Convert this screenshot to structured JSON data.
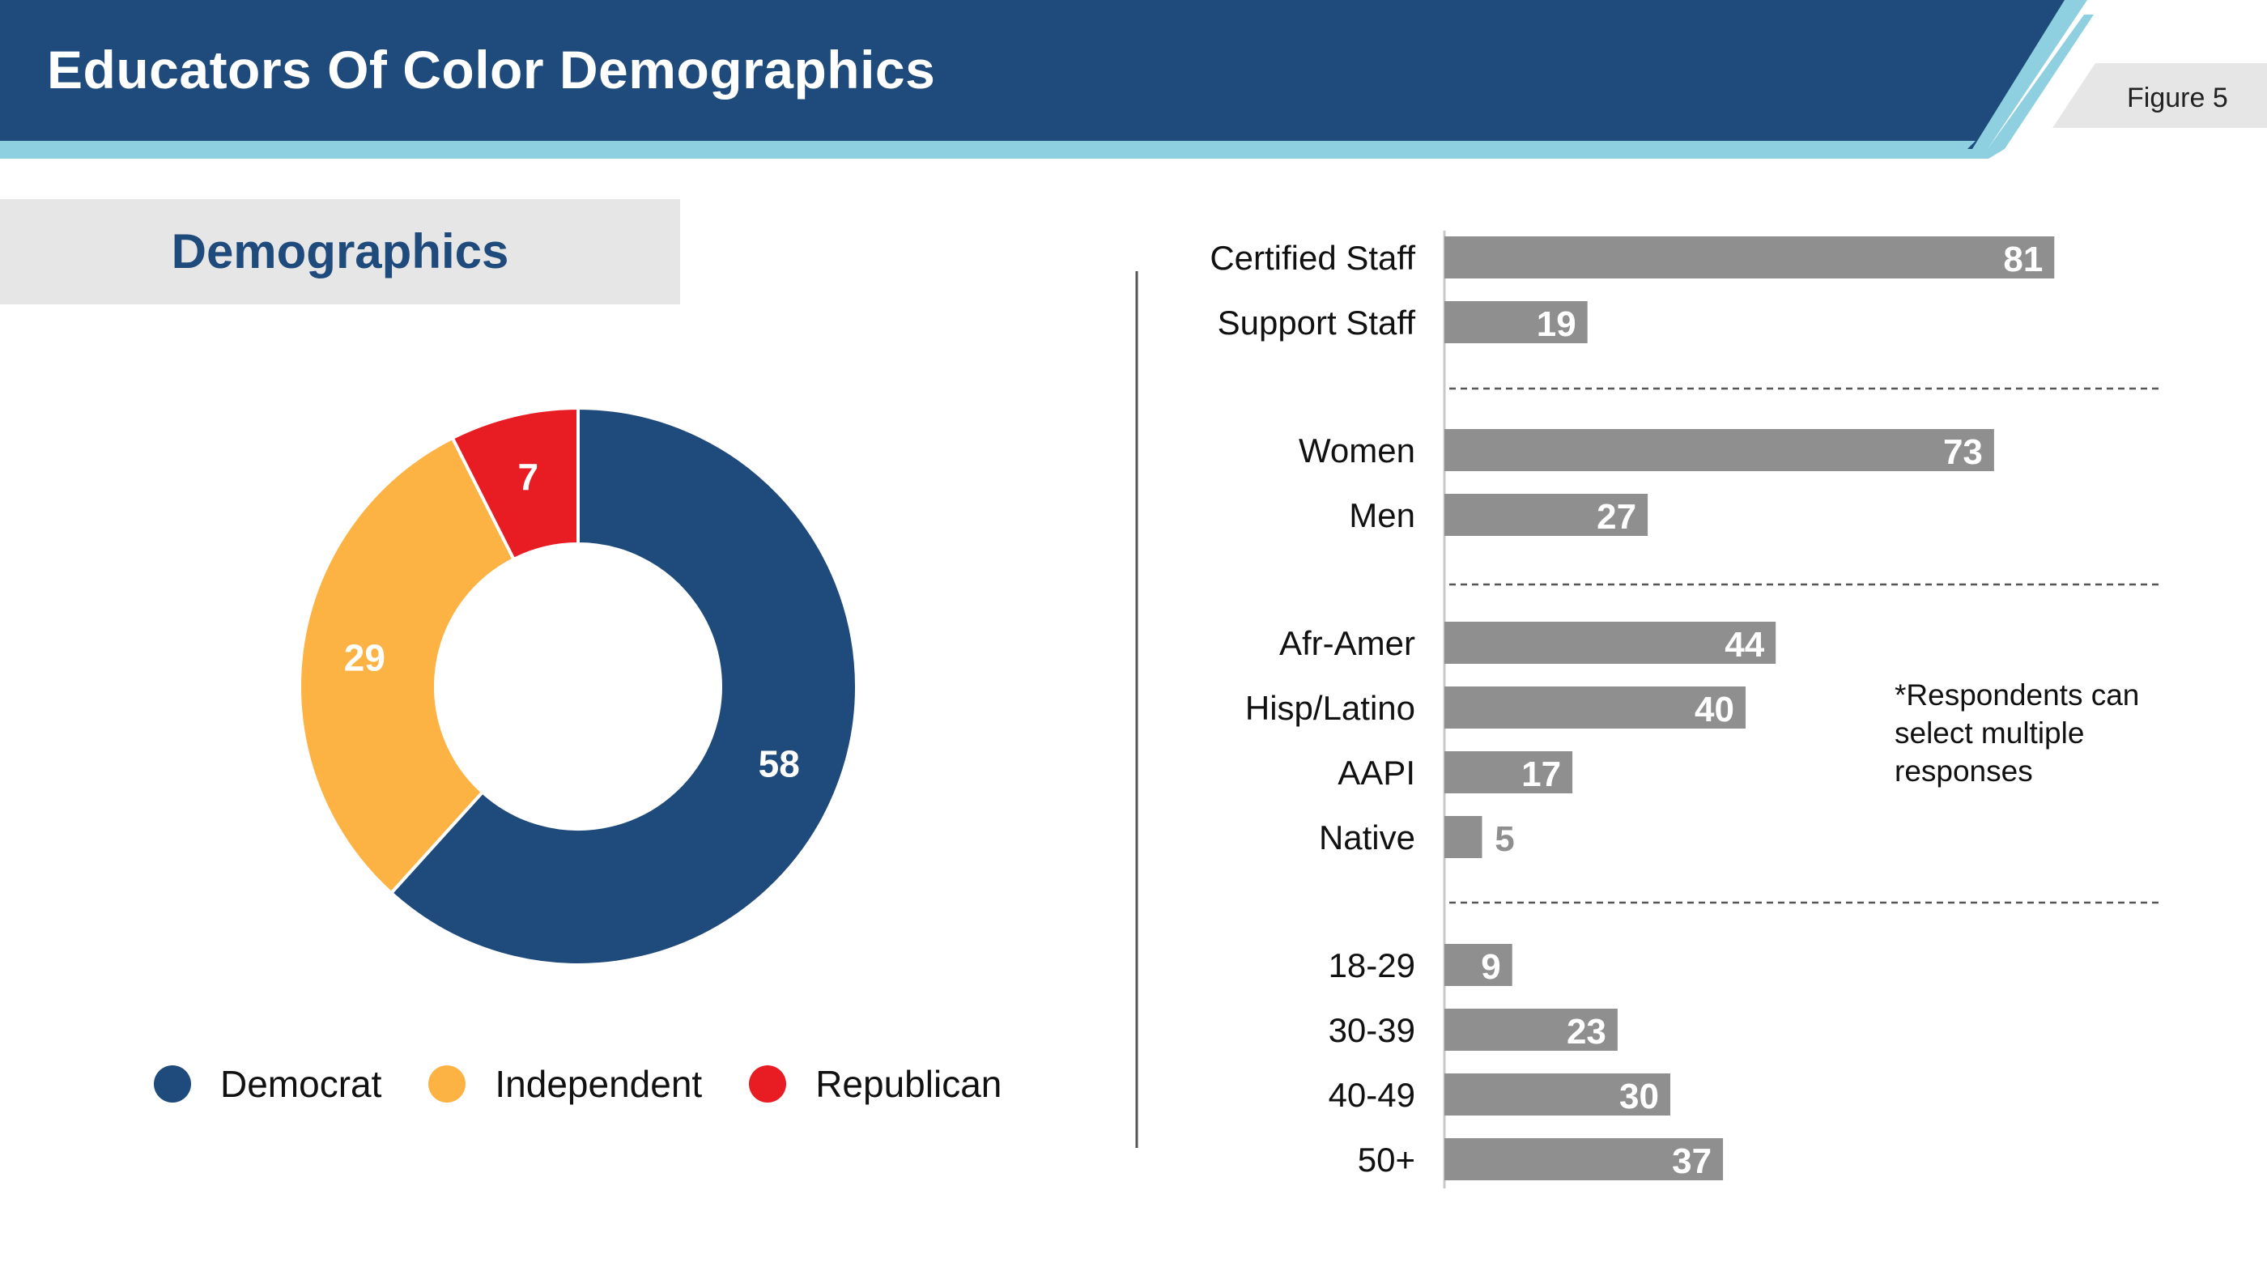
{
  "header": {
    "title": "Educators Of Color Demographics",
    "figure_label": "Figure 5"
  },
  "section": {
    "title": "Demographics"
  },
  "footnote": "*Respondents  can select multiple responses",
  "colors": {
    "navy": "#1f4a7c",
    "light_blue": "#8fd0e0",
    "bar_gray": "#8f8f8f",
    "democrat": "#1f4a7c",
    "independent": "#fdb244",
    "republican": "#e81c23"
  },
  "chart_data": [
    {
      "type": "pie",
      "subtype": "donut",
      "title": "",
      "categories": [
        "Democrat",
        "Independent",
        "Republican"
      ],
      "values": [
        58,
        29,
        7
      ],
      "colors": [
        "#1f4a7c",
        "#fdb244",
        "#e81c23"
      ],
      "legend": "bottom"
    },
    {
      "type": "bar",
      "orientation": "horizontal",
      "title": "",
      "xlim": [
        0,
        100
      ],
      "groups": [
        {
          "categories": [
            "Certified Staff",
            "Support Staff"
          ],
          "values": [
            81,
            19
          ]
        },
        {
          "categories": [
            "Women",
            "Men"
          ],
          "values": [
            73,
            27
          ]
        },
        {
          "categories": [
            "Afr-Amer",
            "Hisp/Latino",
            "AAPI",
            "Native"
          ],
          "values": [
            44,
            40,
            17,
            5
          ]
        },
        {
          "categories": [
            "18-29",
            "30-39",
            "40-49",
            "50+"
          ],
          "values": [
            9,
            23,
            30,
            37
          ]
        }
      ]
    }
  ]
}
